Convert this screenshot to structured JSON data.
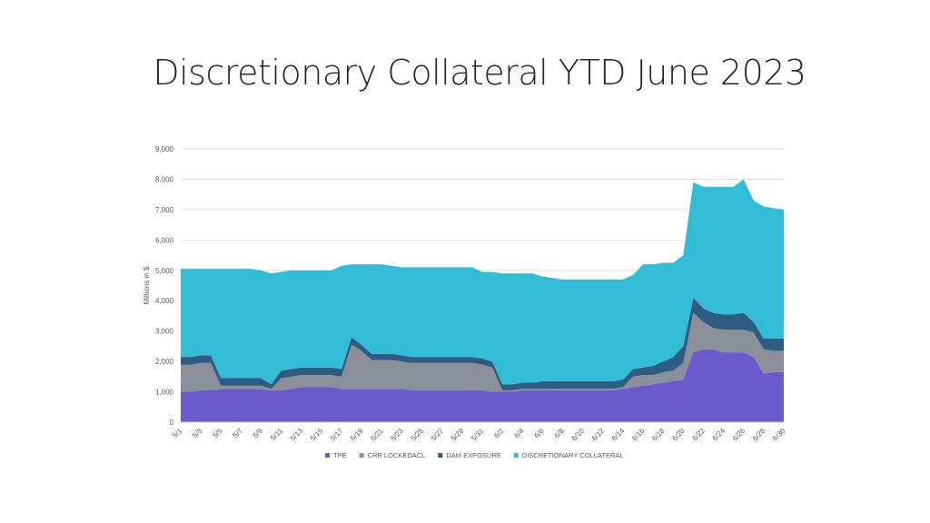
{
  "slide": {
    "title": "Discretionary Collateral YTD June 2023"
  },
  "chart_data": {
    "type": "area",
    "stacked": true,
    "title": "",
    "xlabel": "",
    "ylabel": "Millions in $",
    "ylim": [
      0,
      9000
    ],
    "yticks": [
      0,
      1000,
      2000,
      3000,
      4000,
      5000,
      6000,
      7000,
      8000,
      9000
    ],
    "ytick_labels": [
      "0",
      "1,000",
      "2,000",
      "3,000",
      "4,000",
      "5,000",
      "6,000",
      "7,000",
      "8,000",
      "9,000"
    ],
    "grid": true,
    "legend_position": "bottom",
    "x": [
      "5/1",
      "5/2",
      "5/3",
      "5/4",
      "5/5",
      "5/6",
      "5/7",
      "5/8",
      "5/9",
      "5/10",
      "5/11",
      "5/12",
      "5/13",
      "5/14",
      "5/15",
      "5/16",
      "5/17",
      "5/18",
      "5/19",
      "5/20",
      "5/21",
      "5/22",
      "5/23",
      "5/24",
      "5/25",
      "5/26",
      "5/27",
      "5/28",
      "5/29",
      "5/30",
      "5/31",
      "6/1",
      "6/2",
      "6/3",
      "6/4",
      "6/5",
      "6/6",
      "6/7",
      "6/8",
      "6/9",
      "6/10",
      "6/11",
      "6/12",
      "6/13",
      "6/14",
      "6/15",
      "6/16",
      "6/17",
      "6/18",
      "6/19",
      "6/20",
      "6/21",
      "6/22",
      "6/23",
      "6/24",
      "6/25",
      "6/26",
      "6/27",
      "6/28",
      "6/29",
      "6/30"
    ],
    "xtick_labels": [
      "5/1",
      "5/3",
      "5/5",
      "5/7",
      "5/9",
      "5/11",
      "5/13",
      "5/15",
      "5/17",
      "5/19",
      "5/21",
      "5/23",
      "5/25",
      "5/27",
      "5/29",
      "5/31",
      "6/2",
      "6/4",
      "6/6",
      "6/8",
      "6/10",
      "6/12",
      "6/14",
      "6/16",
      "6/18",
      "6/20",
      "6/22",
      "6/24",
      "6/26",
      "6/28",
      "6/30"
    ],
    "series": [
      {
        "name": "TPE",
        "color": "#6a5acd",
        "values": [
          1000,
          1000,
          1050,
          1050,
          1100,
          1100,
          1100,
          1100,
          1100,
          1050,
          1050,
          1100,
          1150,
          1150,
          1150,
          1150,
          1100,
          1100,
          1100,
          1100,
          1100,
          1100,
          1100,
          1050,
          1050,
          1050,
          1050,
          1050,
          1050,
          1050,
          1050,
          1000,
          1000,
          1000,
          1050,
          1050,
          1050,
          1050,
          1050,
          1050,
          1050,
          1050,
          1050,
          1050,
          1100,
          1150,
          1200,
          1250,
          1300,
          1350,
          1400,
          2300,
          2400,
          2400,
          2300,
          2300,
          2300,
          2150,
          1600,
          1650,
          1650
        ]
      },
      {
        "name": "CRR LOCKEDACL",
        "color": "#8a8f9a",
        "values": [
          900,
          900,
          900,
          900,
          100,
          100,
          100,
          100,
          100,
          50,
          400,
          400,
          400,
          400,
          400,
          400,
          400,
          1450,
          1250,
          950,
          950,
          950,
          900,
          900,
          900,
          900,
          900,
          900,
          900,
          900,
          850,
          800,
          50,
          50,
          50,
          50,
          50,
          50,
          50,
          50,
          50,
          50,
          50,
          50,
          50,
          350,
          350,
          300,
          350,
          350,
          550,
          1300,
          900,
          700,
          750,
          750,
          750,
          800,
          800,
          700,
          700
        ]
      },
      {
        "name": "DAM EXPOSURE",
        "color": "#2e5c82",
        "values": [
          250,
          250,
          250,
          250,
          250,
          250,
          250,
          250,
          250,
          150,
          250,
          250,
          250,
          250,
          250,
          250,
          250,
          250,
          200,
          200,
          200,
          200,
          200,
          200,
          200,
          200,
          200,
          200,
          200,
          200,
          200,
          200,
          200,
          200,
          200,
          200,
          250,
          250,
          250,
          250,
          250,
          250,
          250,
          250,
          250,
          250,
          250,
          300,
          350,
          450,
          550,
          500,
          450,
          500,
          500,
          500,
          550,
          350,
          350,
          400,
          400
        ]
      },
      {
        "name": "DISCRETIONARY COLLATERAL",
        "color": "#32bcd6",
        "values": [
          2900,
          2900,
          2850,
          2850,
          3600,
          3600,
          3600,
          3600,
          3550,
          3650,
          3250,
          3250,
          3200,
          3200,
          3200,
          3200,
          3400,
          2400,
          2650,
          2950,
          2950,
          2900,
          2900,
          2950,
          2950,
          2950,
          2950,
          2950,
          2950,
          2950,
          2850,
          2950,
          3650,
          3650,
          3600,
          3600,
          3450,
          3400,
          3350,
          3350,
          3350,
          3350,
          3350,
          3350,
          3300,
          3100,
          3400,
          3350,
          3250,
          3100,
          3000,
          3800,
          4000,
          4150,
          4200,
          4200,
          4400,
          4000,
          4350,
          4300,
          4250
        ]
      }
    ]
  }
}
